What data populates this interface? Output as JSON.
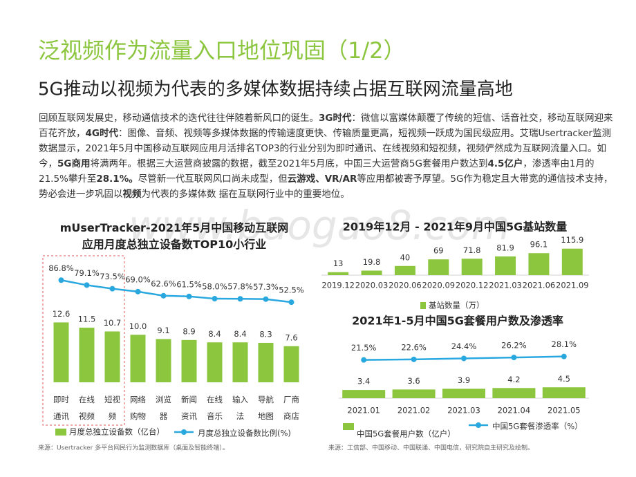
{
  "slide": {
    "title": "泛视频作为流量入口地位巩固（1/2）",
    "subtitle": "5G推动以视频为代表的多媒体数据持续占据互联网流量高地",
    "paragraph": [
      {
        "text": "回顾互联网发展史，移动通信技术的迭代往往伴随着新风口的诞生。",
        "bold": false
      },
      {
        "text": "3G时代",
        "bold": true
      },
      {
        "text": "：微信以富媒体颠覆了传统的短信、话音社交，移动互联网迎来百花齐放，",
        "bold": false
      },
      {
        "text": "4G时代",
        "bold": true
      },
      {
        "text": "：图像、音频、视频等多媒体数据的传输速度更快、传输质量更高，短视频一跃成为国民级应用。艾瑞Usertracker监测数据显示，2021年5月中国移动互联网应用月活排名TOP3的行业分别为即时通讯、在线视频和短视频，视频俨然成为互联网流量入口。如今，",
        "bold": false
      },
      {
        "text": "5G商用",
        "bold": true
      },
      {
        "text": "将满两年。根据三大运营商披露的数据，截至2021年5月底，中国三大运营商5G套餐用户数达到",
        "bold": false
      },
      {
        "text": "4.5亿户",
        "bold": true
      },
      {
        "text": "，渗透率由1月的21.5%攀升至",
        "bold": false
      },
      {
        "text": "28.1%。",
        "bold": true
      },
      {
        "text": "尽管新一代互联网风口尚未成型，但",
        "bold": false
      },
      {
        "text": "云游戏、VR/AR",
        "bold": true
      },
      {
        "text": "等应用都被寄予厚望。5G作为稳定且大带宽的通信技术支持，势必会进一步巩固以",
        "bold": false
      },
      {
        "text": "视频",
        "bold": true
      },
      {
        "text": "为代表的多媒体数 据在互联网行业中的重要地位。",
        "bold": false
      }
    ],
    "watermark": "www.baogao8.com",
    "source_left": "来源：Usertracker 多平台网民行为监测数据库（桌面及智能终端）。",
    "source_right": "来源：工信部、中国移动、中国联通、中国电信，研究院自主研究及绘制。"
  },
  "chart_data": [
    {
      "type": "combo",
      "title": "mUserTracker-2021年5月中国移动互联网应用月度总独立设备数TOP10小行业",
      "categories": [
        "即时通讯",
        "在线视频",
        "短视频",
        "网络购物",
        "浏览器",
        "新闻资讯",
        "在线音乐",
        "输入法",
        "导航地图",
        "厂商商店"
      ],
      "ylim": [
        0,
        16
      ],
      "y2lim": [
        0,
        100
      ],
      "series": [
        {
          "name": "月度总独立设备数（亿台）",
          "color": "#8cc63f",
          "type": "bar",
          "values": [
            12.6,
            11.5,
            10.7,
            10.0,
            9.1,
            8.9,
            8.4,
            8.4,
            8.3,
            7.6
          ],
          "value_labels": [
            "12.6",
            "11.5",
            "10.7",
            "10.0",
            "9.1",
            "8.9",
            "8.4",
            "8.4",
            "8.3",
            "7.6"
          ]
        },
        {
          "name": "月度总独立设备数比例(%)",
          "color": "#29a8e0",
          "type": "line",
          "axis": "y2",
          "values": [
            86.8,
            79.1,
            73.5,
            69.0,
            62.6,
            61.5,
            58.0,
            57.8,
            57.3,
            52.5
          ],
          "value_labels": [
            "86.8%",
            "79.1%",
            "73.5%",
            "69.0%",
            "62.6%",
            "61.5%",
            "58.0%",
            "57.8%",
            "57.3%",
            "52.5%"
          ]
        }
      ]
    },
    {
      "type": "bar",
      "title": "2019年12月 - 2021年9月中国5G基站数量",
      "categories": [
        "2019.12",
        "2020.03",
        "2020.06",
        "2020.09",
        "2020.12",
        "2021.03",
        "2021.06",
        "2021.09"
      ],
      "ylim": [
        0,
        130
      ],
      "series": [
        {
          "name": "基站数量（万）",
          "color": "#8cc63f",
          "type": "bar",
          "values": [
            13,
            19.8,
            40,
            69,
            71.8,
            81.9,
            96.1,
            115.9
          ]
        }
      ]
    },
    {
      "type": "combo",
      "title": "2021年1-5月中国5G套餐用户数及渗透率",
      "categories": [
        "2021.01",
        "2021.02",
        "2021.03",
        "2021.04",
        "2021.05"
      ],
      "ylim": [
        0,
        8
      ],
      "y2lim": [
        0,
        100
      ],
      "series": [
        {
          "name": "中国5G套餐用户数（亿户）",
          "color": "#8cc63f",
          "type": "bar",
          "values": [
            3.4,
            3.6,
            3.9,
            4.2,
            4.5
          ]
        },
        {
          "name": "中国5G套餐渗透率（%）",
          "color": "#29a8e0",
          "type": "line",
          "axis": "y2",
          "values": [
            21.5,
            22.6,
            24.4,
            26.2,
            28.1
          ],
          "value_labels": [
            "21.5%",
            "22.6%",
            "24.4%",
            "26.2%",
            "28.1%"
          ]
        }
      ]
    }
  ]
}
